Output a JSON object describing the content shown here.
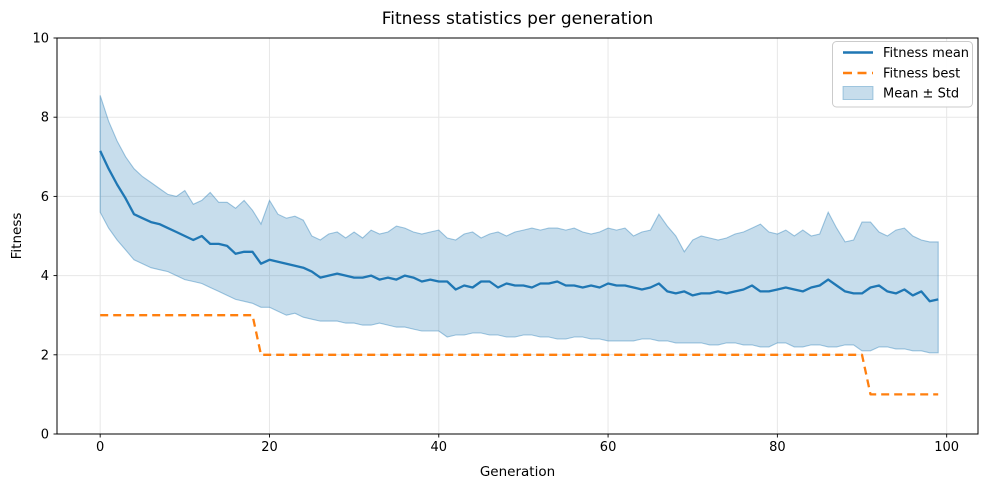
{
  "chart_data": {
    "type": "line",
    "title": "Fitness statistics per generation",
    "xlabel": "Generation",
    "ylabel": "Fitness",
    "xlim": [
      -5.1,
      103.7
    ],
    "ylim": [
      0,
      10
    ],
    "xticks": [
      0,
      20,
      40,
      60,
      80,
      100
    ],
    "yticks": [
      0,
      2,
      4,
      6,
      8,
      10
    ],
    "grid": true,
    "colors": {
      "mean": "#1f77b4",
      "best": "#ff7f0e",
      "band": "#1f77b4",
      "grid": "#e7e7e7",
      "spine": "#000000",
      "legend_border": "#cbcbcb"
    },
    "legend": {
      "position": "upper right",
      "entries": [
        {
          "label": "Fitness mean",
          "kind": "solid-line",
          "color": "#1f77b4"
        },
        {
          "label": "Fitness best",
          "kind": "dashed-line",
          "color": "#ff7f0e"
        },
        {
          "label": "Mean ± Std",
          "kind": "patch",
          "color": "#1f77b4"
        }
      ]
    },
    "x": [
      0,
      1,
      2,
      3,
      4,
      5,
      6,
      7,
      8,
      9,
      10,
      11,
      12,
      13,
      14,
      15,
      16,
      17,
      18,
      19,
      20,
      21,
      22,
      23,
      24,
      25,
      26,
      27,
      28,
      29,
      30,
      31,
      32,
      33,
      34,
      35,
      36,
      37,
      38,
      39,
      40,
      41,
      42,
      43,
      44,
      45,
      46,
      47,
      48,
      49,
      50,
      51,
      52,
      53,
      54,
      55,
      56,
      57,
      58,
      59,
      60,
      61,
      62,
      63,
      64,
      65,
      66,
      67,
      68,
      69,
      70,
      71,
      72,
      73,
      74,
      75,
      76,
      77,
      78,
      79,
      80,
      81,
      82,
      83,
      84,
      85,
      86,
      87,
      88,
      89,
      90,
      91,
      92,
      93,
      94,
      95,
      96,
      97,
      98,
      99
    ],
    "series": [
      {
        "name": "Fitness mean",
        "values": [
          7.15,
          6.7,
          6.3,
          5.95,
          5.55,
          5.45,
          5.35,
          5.3,
          5.2,
          5.1,
          5.0,
          4.9,
          5.0,
          4.8,
          4.8,
          4.75,
          4.55,
          4.6,
          4.6,
          4.3,
          4.4,
          4.35,
          4.3,
          4.25,
          4.2,
          4.1,
          3.95,
          4.0,
          4.05,
          4.0,
          3.95,
          3.95,
          4.0,
          3.9,
          3.95,
          3.9,
          4.0,
          3.95,
          3.85,
          3.9,
          3.85,
          3.85,
          3.65,
          3.75,
          3.7,
          3.85,
          3.85,
          3.7,
          3.8,
          3.75,
          3.75,
          3.7,
          3.8,
          3.8,
          3.85,
          3.75,
          3.75,
          3.7,
          3.75,
          3.7,
          3.8,
          3.75,
          3.75,
          3.7,
          3.65,
          3.7,
          3.8,
          3.6,
          3.55,
          3.6,
          3.5,
          3.55,
          3.55,
          3.6,
          3.55,
          3.6,
          3.65,
          3.75,
          3.6,
          3.6,
          3.65,
          3.7,
          3.65,
          3.6,
          3.7,
          3.75,
          3.9,
          3.75,
          3.6,
          3.55,
          3.55,
          3.7,
          3.75,
          3.6,
          3.55,
          3.65,
          3.5,
          3.6,
          3.35,
          3.4
        ]
      },
      {
        "name": "Fitness best",
        "values": [
          3,
          3,
          3,
          3,
          3,
          3,
          3,
          3,
          3,
          3,
          3,
          3,
          3,
          3,
          3,
          3,
          3,
          3,
          3,
          2,
          2,
          2,
          2,
          2,
          2,
          2,
          2,
          2,
          2,
          2,
          2,
          2,
          2,
          2,
          2,
          2,
          2,
          2,
          2,
          2,
          2,
          2,
          2,
          2,
          2,
          2,
          2,
          2,
          2,
          2,
          2,
          2,
          2,
          2,
          2,
          2,
          2,
          2,
          2,
          2,
          2,
          2,
          2,
          2,
          2,
          2,
          2,
          2,
          2,
          2,
          2,
          2,
          2,
          2,
          2,
          2,
          2,
          2,
          2,
          2,
          2,
          2,
          2,
          2,
          2,
          2,
          2,
          2,
          2,
          2,
          2,
          1,
          1,
          1,
          1,
          1,
          1,
          1,
          1,
          1
        ]
      }
    ],
    "band": {
      "name": "Mean ± Std",
      "fill_alpha": 0.25,
      "upper": [
        8.55,
        7.9,
        7.4,
        7.0,
        6.7,
        6.5,
        6.35,
        6.2,
        6.05,
        6.0,
        6.15,
        5.8,
        5.9,
        6.1,
        5.85,
        5.85,
        5.7,
        5.9,
        5.65,
        5.3,
        5.9,
        5.55,
        5.45,
        5.5,
        5.4,
        5.0,
        4.9,
        5.05,
        5.1,
        4.95,
        5.1,
        4.95,
        5.15,
        5.05,
        5.1,
        5.25,
        5.2,
        5.1,
        5.05,
        5.1,
        5.15,
        4.95,
        4.9,
        5.05,
        5.1,
        4.95,
        5.05,
        5.1,
        5.0,
        5.1,
        5.15,
        5.2,
        5.15,
        5.2,
        5.2,
        5.15,
        5.2,
        5.1,
        5.05,
        5.1,
        5.2,
        5.15,
        5.2,
        5.0,
        5.1,
        5.15,
        5.55,
        5.25,
        5.0,
        4.6,
        4.9,
        5.0,
        4.95,
        4.9,
        4.95,
        5.05,
        5.1,
        5.2,
        5.3,
        5.1,
        5.05,
        5.15,
        5.0,
        5.15,
        5.0,
        5.05,
        5.6,
        5.2,
        4.85,
        4.9,
        5.35,
        5.35,
        5.1,
        5.0,
        5.15,
        5.2,
        5.0,
        4.9,
        4.85,
        4.85
      ],
      "lower": [
        5.6,
        5.2,
        4.9,
        4.65,
        4.4,
        4.3,
        4.2,
        4.15,
        4.1,
        4.0,
        3.9,
        3.85,
        3.8,
        3.7,
        3.6,
        3.5,
        3.4,
        3.35,
        3.3,
        3.2,
        3.2,
        3.1,
        3.0,
        3.05,
        2.95,
        2.9,
        2.85,
        2.85,
        2.85,
        2.8,
        2.8,
        2.75,
        2.75,
        2.8,
        2.75,
        2.7,
        2.7,
        2.65,
        2.6,
        2.6,
        2.6,
        2.45,
        2.5,
        2.5,
        2.55,
        2.55,
        2.5,
        2.5,
        2.45,
        2.45,
        2.5,
        2.5,
        2.45,
        2.45,
        2.4,
        2.4,
        2.45,
        2.45,
        2.4,
        2.4,
        2.35,
        2.35,
        2.35,
        2.35,
        2.4,
        2.4,
        2.35,
        2.35,
        2.3,
        2.3,
        2.3,
        2.3,
        2.25,
        2.25,
        2.3,
        2.3,
        2.25,
        2.25,
        2.2,
        2.2,
        2.3,
        2.3,
        2.2,
        2.2,
        2.25,
        2.25,
        2.2,
        2.2,
        2.25,
        2.25,
        2.1,
        2.1,
        2.2,
        2.2,
        2.15,
        2.15,
        2.1,
        2.1,
        2.05,
        2.05
      ]
    }
  }
}
